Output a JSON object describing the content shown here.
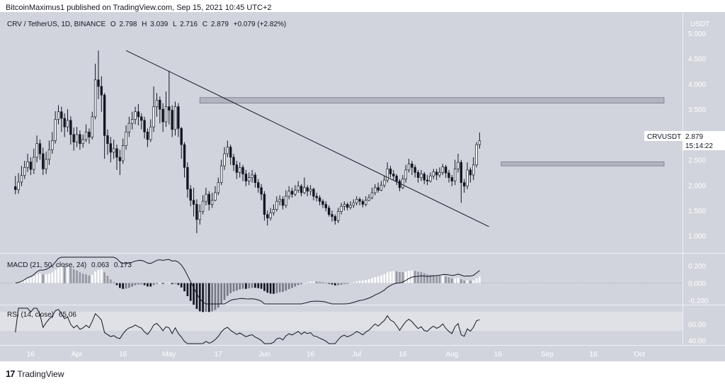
{
  "header": {
    "published": "BitcoinMaximus1 published on TradingView.com, Sep 15, 2021 10:45 UTC+2"
  },
  "footer": {
    "logo": "17",
    "brand": "TradingView"
  },
  "colors": {
    "bg": "#d1d4dc",
    "panel_sep": "#eef0f5",
    "up_fill": "#ffffff",
    "down_fill": "#131722",
    "wick": "#131722",
    "line": "#131722",
    "rect": "#b2b5be",
    "rsi_band": "#dfe1e7",
    "hist_up_strong": "#ffffff",
    "hist_up_weak": "#9598a1",
    "hist_down_strong": "#131722",
    "hist_down_weak": "#787b86"
  },
  "chart_data": {
    "type": "candlestick",
    "symbol_line": {
      "pair": "CRV / TetherUS, 1D, BINANCE",
      "o_label": "O",
      "o": "2.798",
      "h_label": "H",
      "h": "3.039",
      "l_label": "L",
      "l": "2.716",
      "c_label": "C",
      "c": "2.879",
      "change": "+0.079 (+2.82%)"
    },
    "currency": "USDT",
    "price_ticks": [
      "5.000",
      "4.500",
      "4.000",
      "3.500",
      "3.000",
      "2.500",
      "2.000",
      "1.500",
      "1.000"
    ],
    "price_range": [
      0.8,
      5.0
    ],
    "last_label": {
      "symbol": "CRVUSDT",
      "price": "2.879",
      "countdown": "15:14:22"
    },
    "x_ticks": [
      "16",
      "Apr",
      "16",
      "May",
      "17",
      "Jun",
      "16",
      "Jul",
      "16",
      "Aug",
      "16",
      "Sep",
      "16",
      "Oct"
    ],
    "x_tick_days": [
      -15,
      0,
      15,
      30,
      46,
      61,
      76,
      91,
      106,
      122,
      137,
      153,
      168,
      183
    ],
    "x_tick_dates_note": "days since Apr 1 2021",
    "first_day": -20,
    "candles": [
      [
        1.97,
        1.91,
        2.18,
        1.82
      ],
      [
        1.91,
        2.06,
        2.24,
        1.83
      ],
      [
        2.06,
        2.19,
        2.38,
        1.98
      ],
      [
        2.19,
        2.35,
        2.48,
        2.12
      ],
      [
        2.35,
        2.46,
        2.62,
        2.26
      ],
      [
        2.46,
        2.31,
        2.55,
        2.2
      ],
      [
        2.31,
        2.55,
        2.72,
        2.22
      ],
      [
        2.55,
        2.82,
        2.98,
        2.45
      ],
      [
        2.82,
        2.62,
        2.9,
        2.5
      ],
      [
        2.62,
        2.32,
        2.74,
        2.2
      ],
      [
        2.32,
        2.51,
        2.66,
        2.22
      ],
      [
        2.51,
        2.7,
        2.88,
        2.4
      ],
      [
        2.7,
        2.88,
        3.05,
        2.62
      ],
      [
        2.88,
        3.3,
        3.46,
        2.82
      ],
      [
        3.3,
        3.45,
        3.58,
        3.2
      ],
      [
        3.45,
        3.32,
        3.55,
        3.05
      ],
      [
        3.32,
        3.15,
        3.42,
        2.95
      ],
      [
        3.15,
        3.28,
        3.5,
        3.05
      ],
      [
        3.28,
        3.0,
        3.36,
        2.8
      ],
      [
        3.0,
        2.85,
        3.14,
        2.68
      ],
      [
        2.85,
        3.0,
        3.15,
        2.75
      ],
      [
        3.0,
        2.82,
        3.08,
        2.7
      ],
      [
        2.82,
        2.9,
        3.0,
        2.74
      ],
      [
        2.9,
        3.05,
        3.2,
        2.85
      ],
      [
        3.05,
        2.95,
        3.12,
        2.82
      ],
      [
        2.95,
        3.35,
        3.45,
        2.9
      ],
      [
        3.35,
        4.08,
        4.4,
        3.3
      ],
      [
        4.08,
        3.95,
        4.66,
        3.7
      ],
      [
        3.95,
        3.78,
        4.15,
        3.45
      ],
      [
        3.78,
        2.98,
        3.82,
        2.52
      ],
      [
        2.98,
        2.82,
        3.1,
        2.6
      ],
      [
        2.82,
        2.65,
        2.95,
        2.45
      ],
      [
        2.65,
        2.72,
        2.9,
        2.52
      ],
      [
        2.72,
        2.55,
        2.8,
        2.3
      ],
      [
        2.55,
        2.48,
        2.7,
        2.2
      ],
      [
        2.48,
        2.78,
        2.92,
        2.42
      ],
      [
        2.78,
        3.05,
        3.18,
        2.7
      ],
      [
        3.05,
        3.22,
        3.35,
        2.95
      ],
      [
        3.22,
        3.3,
        3.45,
        3.1
      ],
      [
        3.3,
        3.45,
        3.55,
        3.2
      ],
      [
        3.45,
        3.35,
        3.6,
        3.18
      ],
      [
        3.35,
        3.28,
        3.42,
        3.1
      ],
      [
        3.28,
        3.05,
        3.35,
        2.92
      ],
      [
        3.05,
        2.9,
        3.12,
        2.75
      ],
      [
        2.9,
        3.15,
        3.3,
        2.85
      ],
      [
        3.15,
        3.55,
        3.95,
        3.05
      ],
      [
        3.55,
        3.68,
        3.82,
        3.35
      ],
      [
        3.68,
        3.5,
        3.75,
        3.22
      ],
      [
        3.5,
        3.25,
        3.62,
        3.05
      ],
      [
        3.25,
        3.55,
        3.85,
        3.15
      ],
      [
        3.55,
        3.48,
        4.26,
        3.2
      ],
      [
        3.48,
        3.1,
        3.58,
        2.95
      ],
      [
        3.1,
        3.55,
        3.65,
        2.98
      ],
      [
        3.55,
        3.12,
        3.62,
        2.95
      ],
      [
        3.12,
        2.8,
        3.15,
        2.52
      ],
      [
        2.8,
        2.35,
        2.85,
        2.15
      ],
      [
        2.35,
        1.92,
        2.45,
        1.75
      ],
      [
        1.92,
        1.7,
        2.0,
        1.58
      ],
      [
        1.7,
        1.62,
        1.95,
        1.38
      ],
      [
        1.62,
        1.32,
        1.72,
        1.05
      ],
      [
        1.32,
        1.48,
        1.62,
        1.22
      ],
      [
        1.48,
        1.68,
        1.8,
        1.42
      ],
      [
        1.68,
        1.82,
        1.95,
        1.6
      ],
      [
        1.82,
        1.62,
        1.88,
        1.5
      ],
      [
        1.62,
        1.7,
        1.85,
        1.55
      ],
      [
        1.7,
        1.85,
        1.98,
        1.68
      ],
      [
        1.85,
        2.05,
        2.15,
        1.8
      ],
      [
        2.05,
        2.38,
        2.5,
        2.0
      ],
      [
        2.38,
        2.62,
        2.75,
        2.3
      ],
      [
        2.62,
        2.75,
        2.88,
        2.55
      ],
      [
        2.75,
        2.55,
        2.8,
        2.4
      ],
      [
        2.55,
        2.4,
        2.62,
        2.28
      ],
      [
        2.4,
        2.25,
        2.48,
        2.12
      ],
      [
        2.25,
        2.35,
        2.45,
        2.15
      ],
      [
        2.35,
        2.22,
        2.4,
        2.08
      ],
      [
        2.22,
        2.08,
        2.3,
        1.98
      ],
      [
        2.08,
        2.15,
        2.25,
        2.0
      ],
      [
        2.15,
        2.2,
        2.3,
        2.05
      ],
      [
        2.2,
        2.05,
        2.25,
        1.95
      ],
      [
        2.05,
        1.95,
        2.12,
        1.85
      ],
      [
        1.95,
        1.82,
        2.02,
        1.7
      ],
      [
        1.82,
        1.42,
        1.88,
        1.3
      ],
      [
        1.42,
        1.35,
        1.5,
        1.2
      ],
      [
        1.35,
        1.45,
        1.55,
        1.3
      ],
      [
        1.45,
        1.52,
        1.62,
        1.4
      ],
      [
        1.52,
        1.68,
        1.78,
        1.48
      ],
      [
        1.68,
        1.72,
        1.8,
        1.6
      ],
      [
        1.72,
        1.6,
        1.78,
        1.52
      ],
      [
        1.6,
        1.78,
        1.9,
        1.55
      ],
      [
        1.78,
        1.88,
        1.98,
        1.72
      ],
      [
        1.88,
        1.82,
        1.95,
        1.75
      ],
      [
        1.82,
        1.9,
        2.0,
        1.78
      ],
      [
        1.9,
        1.98,
        2.08,
        1.85
      ],
      [
        1.98,
        1.85,
        2.02,
        1.78
      ],
      [
        1.85,
        1.95,
        2.15,
        1.82
      ],
      [
        1.95,
        1.88,
        2.0,
        1.78
      ],
      [
        1.88,
        1.92,
        2.0,
        1.8
      ],
      [
        1.92,
        1.78,
        1.95,
        1.7
      ],
      [
        1.78,
        1.75,
        1.85,
        1.68
      ],
      [
        1.75,
        1.68,
        1.8,
        1.6
      ],
      [
        1.68,
        1.62,
        1.72,
        1.55
      ],
      [
        1.62,
        1.55,
        1.68,
        1.48
      ],
      [
        1.55,
        1.42,
        1.6,
        1.38
      ],
      [
        1.42,
        1.38,
        1.5,
        1.28
      ],
      [
        1.38,
        1.3,
        1.42,
        1.22
      ],
      [
        1.3,
        1.48,
        1.55,
        1.25
      ],
      [
        1.48,
        1.58,
        1.65,
        1.42
      ],
      [
        1.58,
        1.62,
        1.68,
        1.5
      ],
      [
        1.62,
        1.56,
        1.66,
        1.5
      ],
      [
        1.56,
        1.6,
        1.68,
        1.52
      ],
      [
        1.6,
        1.65,
        1.72,
        1.55
      ],
      [
        1.65,
        1.72,
        1.78,
        1.6
      ],
      [
        1.72,
        1.68,
        1.76,
        1.6
      ],
      [
        1.68,
        1.62,
        1.72,
        1.56
      ],
      [
        1.62,
        1.7,
        1.78,
        1.58
      ],
      [
        1.7,
        1.75,
        1.82,
        1.68
      ],
      [
        1.75,
        1.85,
        1.95,
        1.72
      ],
      [
        1.85,
        1.95,
        2.02,
        1.8
      ],
      [
        1.95,
        1.9,
        2.05,
        1.85
      ],
      [
        1.9,
        2.0,
        2.08,
        1.88
      ],
      [
        2.0,
        2.1,
        2.18,
        1.95
      ],
      [
        2.1,
        2.32,
        2.45,
        2.05
      ],
      [
        2.32,
        2.22,
        2.38,
        2.15
      ],
      [
        2.22,
        2.18,
        2.3,
        2.1
      ],
      [
        2.18,
        2.08,
        2.22,
        2.0
      ],
      [
        2.08,
        1.95,
        2.12,
        1.88
      ],
      [
        1.95,
        2.12,
        2.2,
        1.92
      ],
      [
        2.12,
        2.3,
        2.4,
        2.05
      ],
      [
        2.3,
        2.42,
        2.52,
        2.25
      ],
      [
        2.42,
        2.35,
        2.48,
        2.2
      ],
      [
        2.35,
        2.25,
        2.4,
        2.15
      ],
      [
        2.25,
        2.15,
        2.3,
        2.05
      ],
      [
        2.15,
        2.22,
        2.3,
        2.08
      ],
      [
        2.22,
        2.1,
        2.26,
        2.02
      ],
      [
        2.1,
        2.08,
        2.2,
        2.0
      ],
      [
        2.08,
        2.18,
        2.25,
        2.05
      ],
      [
        2.18,
        2.26,
        2.32,
        2.12
      ],
      [
        2.26,
        2.2,
        2.32,
        2.1
      ],
      [
        2.2,
        2.25,
        2.35,
        2.15
      ],
      [
        2.25,
        2.36,
        2.42,
        2.2
      ],
      [
        2.36,
        2.24,
        2.4,
        2.14
      ],
      [
        2.24,
        2.15,
        2.3,
        2.05
      ],
      [
        2.15,
        2.08,
        2.2,
        1.98
      ],
      [
        2.08,
        2.32,
        2.5,
        2.0
      ],
      [
        2.32,
        2.45,
        2.62,
        2.25
      ],
      [
        2.45,
        2.05,
        2.5,
        1.65
      ],
      [
        2.05,
        1.98,
        2.12,
        1.85
      ],
      [
        1.98,
        2.3,
        2.45,
        1.92
      ],
      [
        2.3,
        2.2,
        2.35,
        2.05
      ],
      [
        2.2,
        2.4,
        2.55,
        2.1
      ],
      [
        2.4,
        2.8,
        2.85,
        2.35
      ],
      [
        2.8,
        2.88,
        3.04,
        2.72
      ]
    ],
    "trendline": {
      "from": {
        "day": 16,
        "price": 4.66
      },
      "to": {
        "day": 134,
        "price": 1.18
      }
    },
    "resistance_zone": {
      "day_from": 40,
      "day_to": 191,
      "price_lo": 3.62,
      "price_hi": 3.73
    },
    "support_zone": {
      "day_from": 138,
      "day_to": 191,
      "price_lo": 2.38,
      "price_hi": 2.46
    },
    "macd": {
      "label": "MACD (21, 50, close, 24)",
      "hist_value": "0.063",
      "macd_value": "0.173",
      "ticks": [
        "0.200",
        "0.000",
        "-0.200"
      ],
      "range": [
        -0.24,
        0.3
      ]
    },
    "rsi": {
      "label": "RSI (14, close)",
      "value": "65.06",
      "ticks": [
        "60.00",
        "40.00"
      ],
      "range": [
        36,
        80
      ],
      "band": [
        30,
        70
      ]
    }
  }
}
